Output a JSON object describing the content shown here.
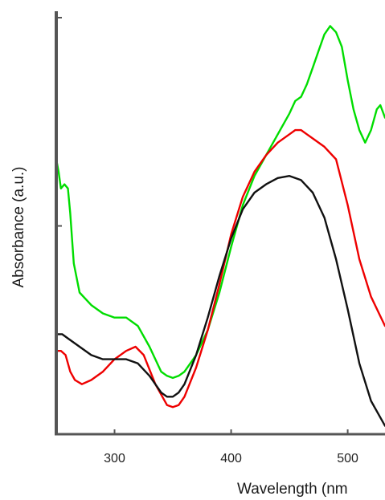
{
  "chart_data": {
    "type": "line",
    "xlabel": "Wavelength (nm",
    "ylabel": "Absorbance (a.u.)",
    "xlim": [
      250,
      532
    ],
    "ylim": [
      0,
      1
    ],
    "x_ticks": [
      300,
      400,
      500
    ],
    "y_ticks_labeled": false,
    "grid": false,
    "legend": "none",
    "series": [
      {
        "color": "#00dd00",
        "x": [
          250,
          252,
          254,
          257,
          260,
          262,
          265,
          270,
          280,
          290,
          300,
          310,
          320,
          330,
          340,
          345,
          350,
          355,
          360,
          370,
          380,
          390,
          400,
          410,
          420,
          430,
          440,
          450,
          455,
          460,
          465,
          470,
          475,
          480,
          485,
          490,
          495,
          500,
          505,
          510,
          515,
          520,
          525,
          528,
          532
        ],
        "y": [
          0.66,
          0.63,
          0.59,
          0.6,
          0.59,
          0.53,
          0.41,
          0.34,
          0.31,
          0.29,
          0.28,
          0.28,
          0.26,
          0.21,
          0.15,
          0.14,
          0.135,
          0.14,
          0.15,
          0.19,
          0.25,
          0.34,
          0.45,
          0.55,
          0.62,
          0.67,
          0.72,
          0.77,
          0.8,
          0.81,
          0.84,
          0.88,
          0.92,
          0.96,
          0.98,
          0.965,
          0.93,
          0.85,
          0.78,
          0.73,
          0.7,
          0.73,
          0.78,
          0.79,
          0.76
        ]
      },
      {
        "color": "#ee0000",
        "x": [
          250,
          254,
          258,
          262,
          266,
          272,
          280,
          290,
          300,
          310,
          318,
          325,
          335,
          345,
          350,
          355,
          360,
          370,
          380,
          390,
          400,
          410,
          420,
          430,
          440,
          450,
          455,
          460,
          465,
          470,
          480,
          490,
          500,
          510,
          520,
          532
        ],
        "y": [
          0.2,
          0.2,
          0.19,
          0.15,
          0.13,
          0.12,
          0.13,
          0.15,
          0.18,
          0.2,
          0.21,
          0.19,
          0.12,
          0.07,
          0.065,
          0.07,
          0.09,
          0.16,
          0.25,
          0.36,
          0.48,
          0.57,
          0.63,
          0.67,
          0.7,
          0.72,
          0.73,
          0.73,
          0.72,
          0.71,
          0.69,
          0.66,
          0.55,
          0.42,
          0.33,
          0.26
        ]
      },
      {
        "color": "#111111",
        "x": [
          250,
          255,
          260,
          270,
          280,
          290,
          300,
          310,
          320,
          330,
          340,
          345,
          350,
          355,
          360,
          370,
          380,
          390,
          400,
          410,
          420,
          430,
          440,
          450,
          460,
          470,
          480,
          490,
          500,
          510,
          520,
          532
        ],
        "y": [
          0.24,
          0.24,
          0.23,
          0.21,
          0.19,
          0.18,
          0.18,
          0.18,
          0.17,
          0.14,
          0.1,
          0.09,
          0.09,
          0.1,
          0.12,
          0.19,
          0.28,
          0.38,
          0.47,
          0.54,
          0.58,
          0.6,
          0.615,
          0.62,
          0.61,
          0.58,
          0.52,
          0.42,
          0.3,
          0.17,
          0.08,
          0.02
        ]
      }
    ]
  }
}
